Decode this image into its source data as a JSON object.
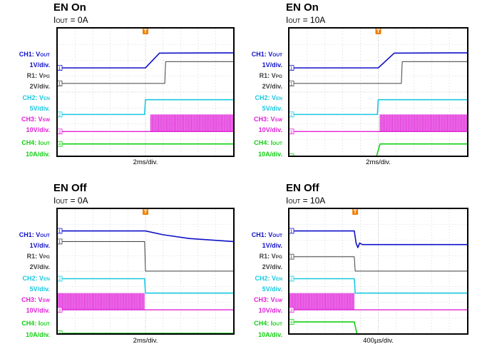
{
  "colors": {
    "ch1": "#1010c8",
    "r1": "#404040",
    "ch2": "#18c8e0",
    "ch3": "#e020d8",
    "ch4": "#10d010",
    "trigger": "#f08000",
    "frame": "#000000",
    "grid": "#bdbdbd"
  },
  "legend_labels": {
    "ch1_name": "CH1: V",
    "ch1_sub": "OUT",
    "ch1_scale": "1V/div.",
    "r1_name": "R1: V",
    "r1_sub": "PG",
    "r1_scale": "2V/div.",
    "ch2_name": "CH2: V",
    "ch2_sub": "EN",
    "ch2_scale": "5V/div.",
    "ch3_name": "CH3: V",
    "ch3_sub": "SW",
    "ch3_scale": "10V/div.",
    "ch4_name": "CH4: I",
    "ch4_sub": "OUT",
    "ch4_scale": "10A/div."
  },
  "panels": [
    {
      "title": "EN On",
      "condition_prefix": "I",
      "condition_sub": "OUT",
      "condition_value": " = 0A",
      "timebase": "2ms/div."
    },
    {
      "title": "EN On",
      "condition_prefix": "I",
      "condition_sub": "OUT",
      "condition_value": " = 10A",
      "timebase": "2ms/div."
    },
    {
      "title": "EN Off",
      "condition_prefix": "I",
      "condition_sub": "OUT",
      "condition_value": " = 0A",
      "timebase": "2ms/div."
    },
    {
      "title": "EN Off",
      "condition_prefix": "I",
      "condition_sub": "OUT",
      "condition_value": " = 10A",
      "timebase": "400µs/div."
    }
  ],
  "chart_data": [
    {
      "type": "line",
      "title": "EN On",
      "subtitle": "IOUT = 0A",
      "xlabel": "2ms/div.",
      "grid": true,
      "x_divisions": 10,
      "y_divisions": 8,
      "trigger_position_div": 5,
      "series": [
        {
          "name": "CH1: VOUT",
          "channel": "ch1",
          "marker": "1",
          "points": [
            [
              0,
              5.65
            ],
            [
              5.0,
              5.65
            ],
            [
              5.8,
              6.6
            ],
            [
              10,
              6.62
            ]
          ]
        },
        {
          "name": "R1: VPG",
          "channel": "r1",
          "marker": "1",
          "points": [
            [
              0,
              4.65
            ],
            [
              6.1,
              4.65
            ],
            [
              6.15,
              6.05
            ],
            [
              10,
              6.05
            ]
          ]
        },
        {
          "name": "CH2: VEN",
          "channel": "ch2",
          "marker": "2",
          "points": [
            [
              0,
              2.65
            ],
            [
              4.95,
              2.65
            ],
            [
              5.0,
              3.6
            ],
            [
              10,
              3.6
            ]
          ]
        },
        {
          "name": "CH3: VSW",
          "channel": "ch3",
          "marker": "3",
          "switching": [
            5.3,
            10
          ],
          "switching_amplitude": 1.1,
          "points": [
            [
              0,
              1.55
            ],
            [
              10,
              1.55
            ]
          ]
        },
        {
          "name": "CH4: IOUT",
          "channel": "ch4",
          "marker": "4",
          "points": [
            [
              0,
              0.75
            ],
            [
              10,
              0.75
            ]
          ]
        }
      ]
    },
    {
      "type": "line",
      "title": "EN On",
      "subtitle": "IOUT = 10A",
      "xlabel": "2ms/div.",
      "grid": true,
      "x_divisions": 10,
      "y_divisions": 8,
      "trigger_position_div": 5,
      "series": [
        {
          "name": "CH1: VOUT",
          "channel": "ch1",
          "marker": "1",
          "points": [
            [
              0,
              5.65
            ],
            [
              5.0,
              5.65
            ],
            [
              5.9,
              6.6
            ],
            [
              10,
              6.62
            ]
          ]
        },
        {
          "name": "R1: VPG",
          "channel": "r1",
          "marker": "1",
          "points": [
            [
              0,
              4.65
            ],
            [
              6.3,
              4.65
            ],
            [
              6.35,
              6.05
            ],
            [
              10,
              6.05
            ]
          ]
        },
        {
          "name": "CH2: VEN",
          "channel": "ch2",
          "marker": "2",
          "points": [
            [
              0,
              2.65
            ],
            [
              4.95,
              2.65
            ],
            [
              5.0,
              3.6
            ],
            [
              10,
              3.6
            ]
          ]
        },
        {
          "name": "CH3: VSW",
          "channel": "ch3",
          "marker": "3",
          "switching": [
            5.1,
            10
          ],
          "switching_amplitude": 1.1,
          "points": [
            [
              0,
              1.55
            ],
            [
              10,
              1.55
            ]
          ]
        },
        {
          "name": "CH4: IOUT",
          "channel": "ch4",
          "marker": "4",
          "points": [
            [
              0,
              -0.05
            ],
            [
              4.9,
              -0.05
            ],
            [
              5.1,
              0.75
            ],
            [
              10,
              0.75
            ]
          ]
        }
      ]
    },
    {
      "type": "line",
      "title": "EN Off",
      "subtitle": "IOUT = 0A",
      "xlabel": "2ms/div.",
      "grid": true,
      "x_divisions": 10,
      "y_divisions": 8,
      "trigger_position_div": 5,
      "series": [
        {
          "name": "CH1: VOUT",
          "channel": "ch1",
          "marker": "1",
          "points": [
            [
              0,
              6.75
            ],
            [
              5.0,
              6.75
            ],
            [
              6.0,
              6.5
            ],
            [
              7.5,
              6.25
            ],
            [
              10,
              6.05
            ]
          ]
        },
        {
          "name": "R1: VPG",
          "channel": "r1",
          "marker": "1",
          "points": [
            [
              0,
              6.05
            ],
            [
              4.95,
              6.05
            ],
            [
              5.0,
              4.1
            ],
            [
              10,
              4.1
            ]
          ]
        },
        {
          "name": "CH2: VEN",
          "channel": "ch2",
          "marker": "2",
          "points": [
            [
              0,
              3.6
            ],
            [
              4.95,
              3.6
            ],
            [
              5.0,
              2.65
            ],
            [
              10,
              2.65
            ]
          ]
        },
        {
          "name": "CH3: VSW",
          "channel": "ch3",
          "marker": "3",
          "switching": [
            0,
            4.95
          ],
          "switching_amplitude": 1.1,
          "points": [
            [
              0,
              1.55
            ],
            [
              10,
              1.55
            ]
          ]
        },
        {
          "name": "CH4: IOUT",
          "channel": "ch4",
          "marker": "4",
          "points": [
            [
              0,
              0.0
            ],
            [
              10,
              0.0
            ]
          ]
        }
      ]
    },
    {
      "type": "line",
      "title": "EN Off",
      "subtitle": "IOUT = 10A",
      "xlabel": "400µs/div.",
      "grid": true,
      "x_divisions": 10,
      "y_divisions": 8,
      "trigger_position_div": 3.7,
      "series": [
        {
          "name": "CH1: VOUT",
          "channel": "ch1",
          "marker": "1",
          "points": [
            [
              0,
              6.75
            ],
            [
              3.65,
              6.75
            ],
            [
              3.75,
              5.95
            ],
            [
              3.85,
              5.65
            ],
            [
              3.95,
              5.95
            ],
            [
              4.1,
              5.85
            ],
            [
              10,
              5.85
            ]
          ]
        },
        {
          "name": "R1: VPG",
          "channel": "r1",
          "marker": "1",
          "points": [
            [
              0,
              5.05
            ],
            [
              3.65,
              5.05
            ],
            [
              3.7,
              4.1
            ],
            [
              10,
              4.1
            ]
          ]
        },
        {
          "name": "CH2: VEN",
          "channel": "ch2",
          "marker": "2",
          "points": [
            [
              0,
              3.6
            ],
            [
              3.65,
              3.6
            ],
            [
              3.7,
              2.65
            ],
            [
              10,
              2.65
            ]
          ]
        },
        {
          "name": "CH3: VSW",
          "channel": "ch3",
          "marker": "3",
          "switching": [
            0,
            3.65
          ],
          "switching_amplitude": 1.1,
          "points": [
            [
              0,
              1.55
            ],
            [
              10,
              1.55
            ]
          ]
        },
        {
          "name": "CH4: IOUT",
          "channel": "ch4",
          "marker": "4",
          "points": [
            [
              0,
              0.75
            ],
            [
              3.65,
              0.75
            ],
            [
              3.8,
              -0.05
            ],
            [
              10,
              -0.05
            ]
          ]
        }
      ]
    }
  ]
}
